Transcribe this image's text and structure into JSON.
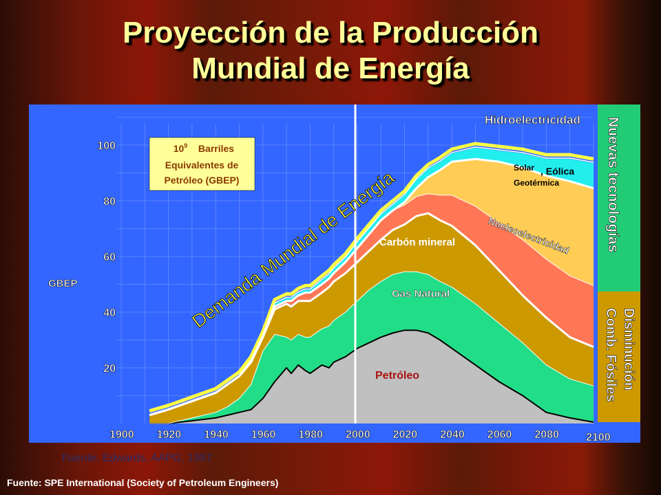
{
  "title": {
    "line1": "Proyección de la Producción",
    "line2": "Mundial de Energía"
  },
  "footer": "Fuente: SPE International (Society of Petroleum Engineers)",
  "faint_source": "Fuente: Edwards, AAPG, 1997",
  "colors": {
    "panel": "#3366ff",
    "petroleo": "#c0c0c0",
    "gas": "#22dd88",
    "carbon": "#cc9900",
    "nuclear": "#ff7755",
    "solar": "#ffcc55",
    "hidro": "#22eeee",
    "demand": "#ffff44",
    "nuevas_box": "#22cc77",
    "disminucion_box": "#cc9900"
  },
  "chart_data": {
    "type": "area",
    "title": "Proyección de la Producción Mundial de Energía",
    "xlabel": "",
    "ylabel": "GBEP",
    "unit_note": {
      "prefix": "10",
      "exp": "9",
      "text": "Barriles Equivalentes de Petróleo (GBEP)"
    },
    "xlim": [
      1900,
      2100
    ],
    "ylim": [
      0,
      115
    ],
    "grid": true,
    "x_ticks": [
      "1900",
      "1920",
      "1940",
      "1960",
      "1980",
      "2000",
      "2020",
      "2040",
      "2060",
      "2080",
      "2100"
    ],
    "y_ticks": [
      "20",
      "40",
      "60",
      "80",
      "100"
    ],
    "stacked": true,
    "x": [
      1912,
      1920,
      1930,
      1940,
      1945,
      1950,
      1955,
      1960,
      1965,
      1970,
      1972,
      1975,
      1978,
      1980,
      1985,
      1988,
      1990,
      1995,
      2000,
      2005,
      2010,
      2015,
      2020,
      2025,
      2030,
      2035,
      2040,
      2050,
      2060,
      2070,
      2080,
      2090,
      2100
    ],
    "series": [
      {
        "name": "Petróleo",
        "color_key": "petroleo",
        "values": [
          0,
          0,
          1,
          2,
          3,
          4,
          5,
          9,
          15,
          20,
          18,
          21,
          19,
          18,
          21,
          20,
          22,
          24,
          27,
          29,
          31,
          32.5,
          33.5,
          33.5,
          32.5,
          30,
          27,
          21,
          15,
          10,
          4,
          2,
          0.5
        ]
      },
      {
        "name": "Gas Natural",
        "color_key": "gas",
        "values": [
          0,
          0,
          1,
          2,
          3,
          5,
          9,
          17,
          17,
          11,
          12,
          11,
          12,
          13,
          13,
          15,
          15,
          16,
          17,
          19,
          20,
          21,
          21,
          21,
          21,
          21,
          22,
          22,
          21,
          19,
          17,
          14,
          13
        ]
      },
      {
        "name": "Carbón mineral",
        "color_key": "carbon",
        "values": [
          3,
          5,
          6,
          7,
          8,
          8,
          8,
          5,
          9,
          12,
          12,
          12,
          13,
          13,
          13,
          14,
          14,
          14,
          14,
          14,
          15,
          16,
          17,
          20,
          22,
          22,
          22,
          21,
          19,
          17,
          17,
          15,
          14
        ]
      },
      {
        "name": "Nucleoelectricidad",
        "color_key": "nuclear",
        "values": [
          0,
          0,
          0,
          0,
          0,
          0,
          0,
          0,
          1,
          1,
          2,
          2,
          3,
          3,
          3,
          3,
          3,
          4,
          5,
          6,
          7,
          7,
          7,
          7,
          7,
          9,
          11,
          14,
          17,
          20,
          21,
          22,
          22
        ]
      },
      {
        "name": "Solar, Eólica Geotérmica",
        "color_key": "solar",
        "values": [
          0,
          0,
          0,
          0,
          0,
          0,
          0,
          0,
          0,
          0,
          0,
          0,
          0,
          0,
          0,
          0,
          0,
          0,
          0,
          0,
          0,
          0,
          1,
          3,
          6,
          9,
          12,
          17,
          22,
          26,
          30,
          34,
          35
        ]
      },
      {
        "name": "Hidroelectricidad",
        "color_key": "hidro",
        "values": [
          0,
          0,
          0,
          0,
          0,
          0,
          0.5,
          0.5,
          1,
          1,
          1,
          1,
          1,
          1,
          1.5,
          1.5,
          1.5,
          1.5,
          2,
          2,
          2,
          2,
          2.5,
          3,
          3,
          3,
          3,
          4,
          4,
          5,
          6,
          8,
          9
        ]
      }
    ],
    "demand_line": {
      "label": "Demanda Mundial de Energía"
    },
    "split_year": 2000,
    "annotations": [
      "Hidroelectricidad",
      "Solar",
      ", Eólica",
      "Geotérmica",
      "Nucleoelectricidad",
      "Carbón mineral",
      "Gas Natural",
      "Petróleo"
    ],
    "side_labels": {
      "top": "Nuevas tecnologías",
      "bottom_line1": "Disminución",
      "bottom_line2": "Comb. Fósiles"
    }
  }
}
